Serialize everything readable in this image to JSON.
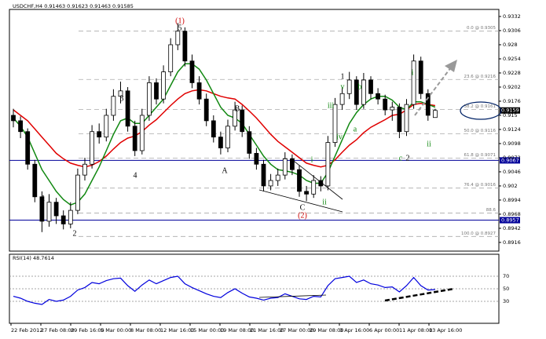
{
  "chart_data": {
    "type": "candlestick",
    "title": "USDCHF,H4 0.91463 0.91623 0.91463 0.91585",
    "ylim": [
      0.89,
      0.9345
    ],
    "yticks": [
      0.9332,
      0.9306,
      0.928,
      0.9254,
      0.9228,
      0.9202,
      0.9176,
      0.915,
      0.9124,
      0.9098,
      0.9072,
      0.9046,
      0.902,
      0.8994,
      0.8968,
      0.8942,
      0.8916
    ],
    "x_labels": [
      "22 Feb 2012",
      "27 Feb 08:00",
      "29 Feb 16:00",
      "5 Mar 00:00",
      "8 Mar 08:00",
      "12 Mar 16:00",
      "15 Mar 00:00",
      "19 Mar 08:00",
      "21 Mar 16:00",
      "27 Mar 00:00",
      "29 Mar 08:00",
      "3 Apr 16:00",
      "6 Apr 00:00",
      "11 Apr 08:00",
      "13 Apr 16:00"
    ],
    "ohlc": [
      [
        0.915,
        0.9162,
        0.9128,
        0.914
      ],
      [
        0.914,
        0.9148,
        0.9108,
        0.912
      ],
      [
        0.912,
        0.9126,
        0.905,
        0.906
      ],
      [
        0.906,
        0.9068,
        0.899,
        0.9
      ],
      [
        0.9,
        0.901,
        0.8935,
        0.8955
      ],
      [
        0.8955,
        0.9005,
        0.8945,
        0.899
      ],
      [
        0.899,
        0.8998,
        0.895,
        0.8965
      ],
      [
        0.8965,
        0.8975,
        0.894,
        0.895
      ],
      [
        0.895,
        0.899,
        0.8942,
        0.8975
      ],
      [
        0.8975,
        0.9052,
        0.8968,
        0.904
      ],
      [
        0.904,
        0.9072,
        0.903,
        0.906
      ],
      [
        0.906,
        0.9132,
        0.9052,
        0.912
      ],
      [
        0.912,
        0.9135,
        0.9098,
        0.911
      ],
      [
        0.911,
        0.9162,
        0.9102,
        0.915
      ],
      [
        0.915,
        0.9198,
        0.914,
        0.9185
      ],
      [
        0.9185,
        0.9212,
        0.9172,
        0.9195
      ],
      [
        0.9195,
        0.9202,
        0.912,
        0.913
      ],
      [
        0.913,
        0.914,
        0.9075,
        0.9085
      ],
      [
        0.9085,
        0.9162,
        0.9078,
        0.915
      ],
      [
        0.915,
        0.9222,
        0.914,
        0.921
      ],
      [
        0.921,
        0.9218,
        0.917,
        0.918
      ],
      [
        0.918,
        0.9242,
        0.9172,
        0.923
      ],
      [
        0.923,
        0.9292,
        0.9222,
        0.928
      ],
      [
        0.928,
        0.932,
        0.927,
        0.9305
      ],
      [
        0.9305,
        0.9312,
        0.924,
        0.925
      ],
      [
        0.925,
        0.9262,
        0.92,
        0.921
      ],
      [
        0.921,
        0.9222,
        0.917,
        0.918
      ],
      [
        0.918,
        0.919,
        0.913,
        0.914
      ],
      [
        0.914,
        0.915,
        0.91,
        0.911
      ],
      [
        0.911,
        0.912,
        0.9078,
        0.909
      ],
      [
        0.909,
        0.9142,
        0.9082,
        0.913
      ],
      [
        0.913,
        0.9175,
        0.9122,
        0.916
      ],
      [
        0.916,
        0.9168,
        0.911,
        0.912
      ],
      [
        0.912,
        0.913,
        0.907,
        0.908
      ],
      [
        0.908,
        0.909,
        0.905,
        0.906
      ],
      [
        0.906,
        0.9068,
        0.901,
        0.902
      ],
      [
        0.902,
        0.9042,
        0.9012,
        0.903
      ],
      [
        0.903,
        0.9052,
        0.902,
        0.904
      ],
      [
        0.904,
        0.9082,
        0.9032,
        0.907
      ],
      [
        0.907,
        0.9078,
        0.904,
        0.905
      ],
      [
        0.905,
        0.9058,
        0.9,
        0.901
      ],
      [
        0.901,
        0.902,
        0.8992,
        0.9005
      ],
      [
        0.9005,
        0.904,
        0.8998,
        0.903
      ],
      [
        0.903,
        0.9038,
        0.901,
        0.902
      ],
      [
        0.902,
        0.9112,
        0.9012,
        0.91
      ],
      [
        0.91,
        0.9182,
        0.9092,
        0.917
      ],
      [
        0.917,
        0.9202,
        0.916,
        0.919
      ],
      [
        0.919,
        0.923,
        0.918,
        0.9215
      ],
      [
        0.9215,
        0.9222,
        0.916,
        0.917
      ],
      [
        0.917,
        0.9228,
        0.9162,
        0.9215
      ],
      [
        0.9215,
        0.9222,
        0.918,
        0.919
      ],
      [
        0.919,
        0.92,
        0.917,
        0.918
      ],
      [
        0.918,
        0.9188,
        0.915,
        0.916
      ],
      [
        0.916,
        0.9175,
        0.914,
        0.9165
      ],
      [
        0.9165,
        0.9172,
        0.9108,
        0.912
      ],
      [
        0.912,
        0.918,
        0.9112,
        0.917
      ],
      [
        0.917,
        0.9262,
        0.9162,
        0.925
      ],
      [
        0.925,
        0.9258,
        0.918,
        0.919
      ],
      [
        0.919,
        0.9198,
        0.914,
        0.915
      ],
      [
        0.9146,
        0.9162,
        0.9146,
        0.9159
      ]
    ],
    "candle_color": "#000000",
    "series": [
      {
        "color": "#e00000",
        "values": [
          0.916,
          0.915,
          0.914,
          0.9125,
          0.911,
          0.9095,
          0.908,
          0.907,
          0.9062,
          0.9058,
          0.9055,
          0.9058,
          0.9065,
          0.9075,
          0.9088,
          0.91,
          0.9108,
          0.9112,
          0.912,
          0.9132,
          0.9142,
          0.9155,
          0.9168,
          0.918,
          0.919,
          0.9195,
          0.9197,
          0.9195,
          0.919,
          0.9185,
          0.9182,
          0.918,
          0.917,
          0.9158,
          0.9145,
          0.913,
          0.9115,
          0.9102,
          0.9092,
          0.9082,
          0.9072,
          0.9062,
          0.9058,
          0.9055,
          0.9058,
          0.9068,
          0.9082,
          0.9095,
          0.9105,
          0.9118,
          0.9128,
          0.9135,
          0.9142,
          0.915,
          0.9152,
          0.916,
          0.917,
          0.9172,
          0.917,
          0.9168
        ]
      },
      {
        "color": "#118811",
        "values": [
          0.9145,
          0.913,
          0.911,
          0.908,
          0.905,
          0.903,
          0.901,
          0.8995,
          0.8985,
          0.899,
          0.9005,
          0.903,
          0.9055,
          0.9085,
          0.9115,
          0.914,
          0.9145,
          0.9135,
          0.9135,
          0.915,
          0.9165,
          0.918,
          0.9205,
          0.923,
          0.9245,
          0.9245,
          0.9235,
          0.9215,
          0.919,
          0.9165,
          0.915,
          0.9145,
          0.9135,
          0.9115,
          0.9095,
          0.9075,
          0.906,
          0.905,
          0.9048,
          0.9045,
          0.904,
          0.903,
          0.9025,
          0.9025,
          0.9045,
          0.9075,
          0.9105,
          0.9135,
          0.9155,
          0.917,
          0.918,
          0.9185,
          0.9185,
          0.9178,
          0.9165,
          0.916,
          0.9175,
          0.9175,
          0.917,
          0.9165
        ]
      }
    ],
    "levels": [
      0.9067,
      0.8957
    ],
    "level_color": "#000099",
    "last_price": 0.9159,
    "fib": [
      {
        "value": 0.9305,
        "label": "0.0 @ 0.9305"
      },
      {
        "value": 0.9216,
        "label": "23.6 @ 0.9216"
      },
      {
        "value": 0.9161,
        "label": "38.2 @ 0.9161"
      },
      {
        "value": 0.9116,
        "label": "50.0 @ 0.9116"
      },
      {
        "value": 0.9071,
        "label": "61.8 @ 0.9071"
      },
      {
        "value": 0.9016,
        "label": "76.4 @ 0.9016"
      },
      {
        "value": 0.897,
        "label": "88.6"
      },
      {
        "value": 0.8927,
        "label": "100.0 @ 0.8927"
      }
    ],
    "annotations": [
      {
        "text": "(1)",
        "color": "#cc0000"
      },
      {
        "text": "5",
        "color": "#000000"
      },
      {
        "text": "3",
        "color": "#000000"
      },
      {
        "text": "4",
        "color": "#000000"
      },
      {
        "text": "1",
        "color": "#000000"
      },
      {
        "text": "2",
        "color": "#000000"
      },
      {
        "text": "A",
        "color": "#000000"
      },
      {
        "text": "B",
        "color": "#000000"
      },
      {
        "text": "C",
        "color": "#000000"
      },
      {
        "text": "(2)",
        "color": "#cc0000"
      },
      {
        "text": "i",
        "color": "#118811"
      },
      {
        "text": "ii",
        "color": "#118811"
      },
      {
        "text": "iii",
        "color": "#118811"
      },
      {
        "text": "iv",
        "color": "#118811"
      },
      {
        "text": "v",
        "color": "#118811"
      },
      {
        "text": "a",
        "color": "#118811"
      },
      {
        "text": "b",
        "color": "#118811"
      },
      {
        "text": "c",
        "color": "#118811"
      },
      {
        "text": "2",
        "color": "#000000"
      },
      {
        "text": "1",
        "color": "#000000"
      },
      {
        "text": "i",
        "color": "#118811"
      },
      {
        "text": "ii",
        "color": "#118811"
      }
    ],
    "rsi": {
      "title": "RSI(14) 48.7614",
      "color": "#0000dd",
      "ylim": [
        0,
        100
      ],
      "yticks": [
        70,
        50,
        30
      ],
      "values": [
        38,
        35,
        30,
        27,
        25,
        33,
        30,
        32,
        38,
        48,
        52,
        60,
        58,
        63,
        66,
        67,
        55,
        46,
        56,
        64,
        58,
        63,
        68,
        70,
        58,
        52,
        47,
        42,
        38,
        36,
        44,
        50,
        43,
        37,
        35,
        32,
        35,
        36,
        42,
        38,
        34,
        33,
        38,
        37,
        55,
        66,
        68,
        70,
        60,
        64,
        58,
        56,
        52,
        53,
        45,
        55,
        68,
        55,
        48,
        48.7614
      ]
    }
  }
}
